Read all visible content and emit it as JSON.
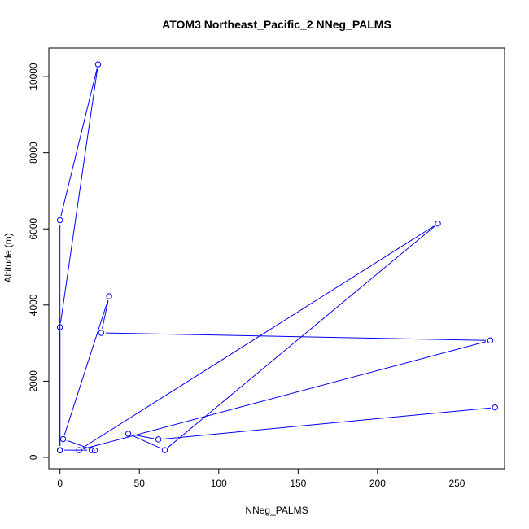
{
  "chart_data": {
    "type": "line",
    "title": "ATOM3 Northeast_Pacific_2 NNeg_PALMS",
    "xlabel": "NNeg_PALMS",
    "ylabel": "Altitude (m)",
    "xlim": [
      -7,
      280
    ],
    "ylim": [
      -300,
      10750
    ],
    "x_ticks": [
      0,
      50,
      100,
      150,
      200,
      250
    ],
    "y_ticks": [
      0,
      2000,
      4000,
      6000,
      8000,
      10000
    ],
    "grid": false,
    "legend": "none",
    "series_color": "#0000ff",
    "series": [
      {
        "x": [
          0,
          0,
          24,
          0,
          0,
          20,
          22,
          2,
          31,
          26,
          271,
          12,
          238,
          66,
          43,
          62,
          274
        ],
        "y": [
          180,
          6230,
          10320,
          3420,
          190,
          190,
          180,
          480,
          4230,
          3270,
          3070,
          190,
          6140,
          190,
          620,
          470,
          1310
        ]
      }
    ]
  }
}
